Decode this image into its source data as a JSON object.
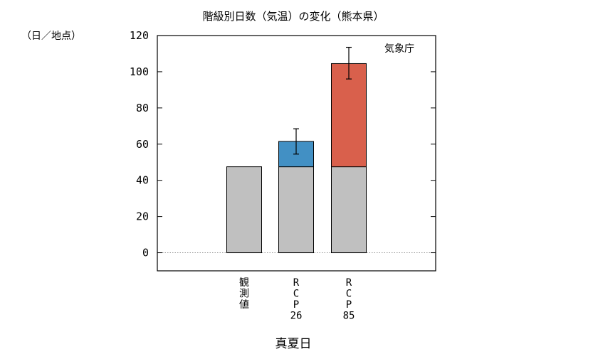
{
  "chart_data": {
    "type": "bar",
    "title": "階級別日数（気温）の変化（熊本県）",
    "ylabel": "（日／地点）",
    "xlabel": "真夏日",
    "source": "気象庁",
    "ylim": [
      -10,
      120
    ],
    "yticks": [
      0,
      20,
      40,
      60,
      80,
      100,
      120
    ],
    "baseline_line": "dotted",
    "categories": [
      {
        "label_lines": [
          "観",
          "測",
          "値"
        ]
      },
      {
        "label_lines": [
          "R",
          "C",
          "P",
          "26"
        ]
      },
      {
        "label_lines": [
          "R",
          "C",
          "P",
          "85"
        ]
      }
    ],
    "series": [
      {
        "role": "base",
        "color": "#c0c0c0",
        "values": [
          47.5,
          47.5,
          47.5
        ]
      },
      {
        "role": "increase",
        "colors": [
          null,
          "#4290c4",
          "#d9604c"
        ],
        "values": [
          0,
          14,
          57
        ]
      }
    ],
    "error_bars": [
      null,
      {
        "center": 61.5,
        "low": 54.5,
        "high": 68.5
      },
      {
        "center": 105,
        "low": 96,
        "high": 113.5
      }
    ]
  }
}
